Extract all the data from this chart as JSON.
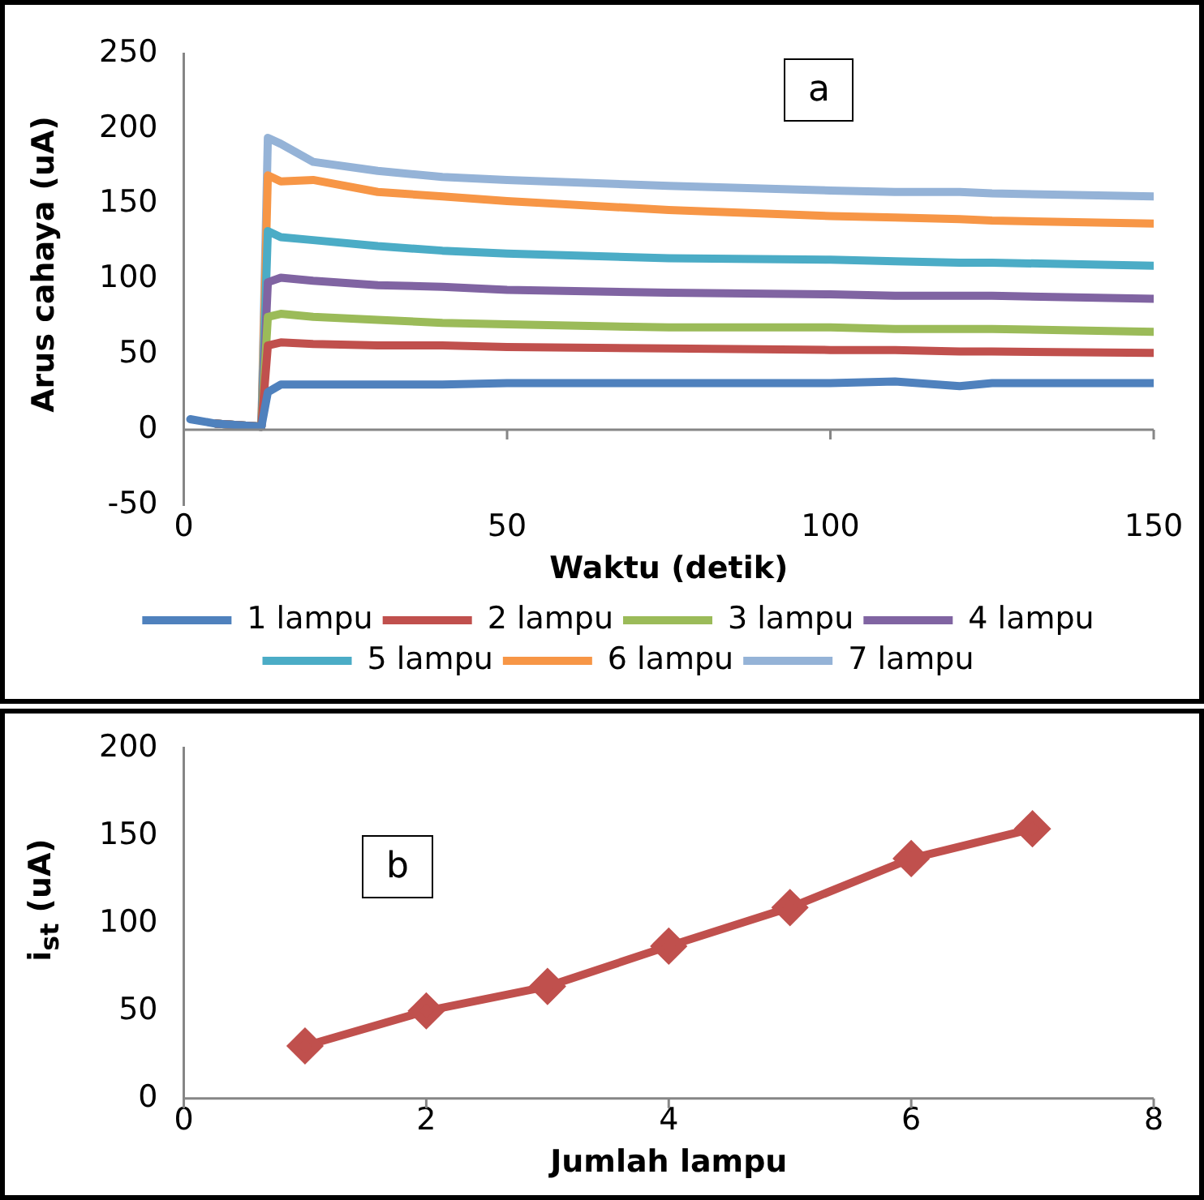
{
  "chart_data": [
    {
      "type": "line",
      "xlabel": "Waktu (detik)",
      "ylabel": "Arus cahaya  (uA)",
      "annotations": [
        "a"
      ],
      "x": [
        1,
        5,
        12,
        13,
        15,
        20,
        30,
        40,
        50,
        75,
        100,
        110,
        120,
        125,
        150
      ],
      "xlim": [
        0,
        150
      ],
      "xticks": [
        0,
        50,
        100,
        150
      ],
      "ylim": [
        -50,
        250
      ],
      "yticks": [
        -50,
        0,
        50,
        100,
        150,
        200,
        250
      ],
      "grid": false,
      "legend": "bottom",
      "marker": "none",
      "line_style": "solid",
      "series": [
        {
          "name": "1 lampu",
          "color": "#4f81bd",
          "values": [
            7,
            4,
            2,
            25,
            30,
            30,
            30,
            30,
            31,
            31,
            31,
            32,
            29,
            31,
            31
          ]
        },
        {
          "name": "2 lampu",
          "color": "#c0504d",
          "values": [
            null,
            4,
            2,
            56,
            58,
            57,
            56,
            56,
            55,
            54,
            53,
            53,
            52,
            52,
            51
          ]
        },
        {
          "name": "3 lampu",
          "color": "#9bbb59",
          "values": [
            null,
            4,
            2,
            75,
            77,
            75,
            73,
            71,
            70,
            68,
            68,
            67,
            67,
            67,
            65
          ]
        },
        {
          "name": "4 lampu",
          "color": "#8064a2",
          "values": [
            null,
            4,
            2,
            98,
            101,
            99,
            96,
            95,
            93,
            91,
            90,
            89,
            89,
            89,
            87
          ]
        },
        {
          "name": "5 lampu",
          "color": "#4bacc6",
          "values": [
            null,
            4,
            2,
            132,
            128,
            126,
            122,
            119,
            117,
            114,
            113,
            112,
            111,
            111,
            109
          ]
        },
        {
          "name": "6 lampu",
          "color": "#f79646",
          "values": [
            null,
            4,
            2,
            169,
            165,
            166,
            158,
            155,
            152,
            146,
            142,
            141,
            140,
            139,
            137
          ]
        },
        {
          "name": "7 lampu",
          "color": "#95b3d7",
          "values": [
            null,
            4,
            2,
            194,
            190,
            178,
            172,
            168,
            166,
            162,
            159,
            158,
            158,
            157,
            155
          ]
        }
      ]
    },
    {
      "type": "line",
      "xlabel": "Jumlah lampu",
      "ylabel": "i$_{st}$ (uA)",
      "annotations": [
        "b"
      ],
      "x": [
        1,
        2,
        3,
        4,
        5,
        6,
        7
      ],
      "xlim": [
        0,
        8
      ],
      "xticks": [
        0,
        2,
        4,
        6,
        8
      ],
      "ylim": [
        0,
        200
      ],
      "yticks": [
        0,
        50,
        100,
        150,
        200
      ],
      "grid": false,
      "legend": false,
      "marker": "diamond",
      "line_style": "solid",
      "series": [
        {
          "color": "#c0504d",
          "values": [
            30,
            50,
            64,
            87,
            109,
            137,
            154
          ]
        }
      ]
    }
  ]
}
